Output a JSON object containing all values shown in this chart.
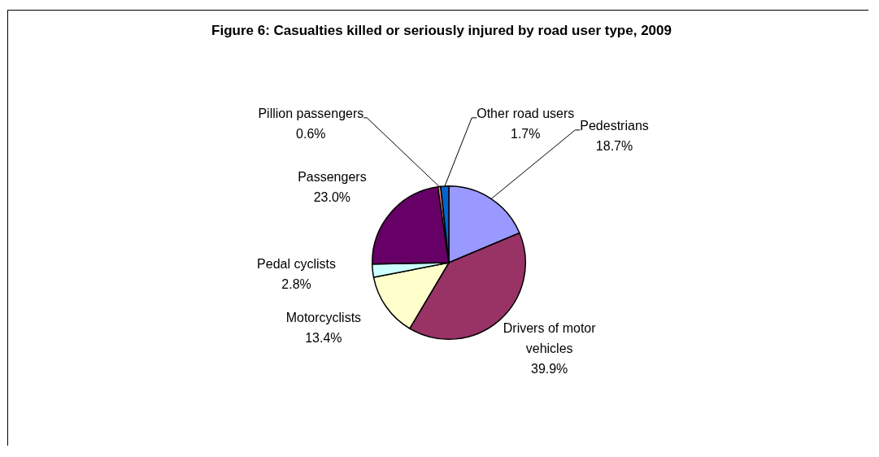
{
  "chart_data": {
    "type": "pie",
    "title": "Figure 6: Casualties killed or seriously injured by road user type, 2009",
    "categories": [
      "Pedestrians",
      "Drivers of motor vehicles",
      "Motorcyclists",
      "Pedal cyclists",
      "Passengers",
      "Pillion passengers",
      "Other road users"
    ],
    "values": [
      18.7,
      39.9,
      13.4,
      2.8,
      23.0,
      0.6,
      1.7
    ],
    "value_labels": [
      "18.7%",
      "39.9%",
      "13.4%",
      "2.8%",
      "23.0%",
      "0.6%",
      "1.7%"
    ],
    "colors": [
      "#9999ff",
      "#993366",
      "#ffffcc",
      "#ccffff",
      "#660066",
      "#ff8080",
      "#0066cc"
    ],
    "legend": false
  }
}
